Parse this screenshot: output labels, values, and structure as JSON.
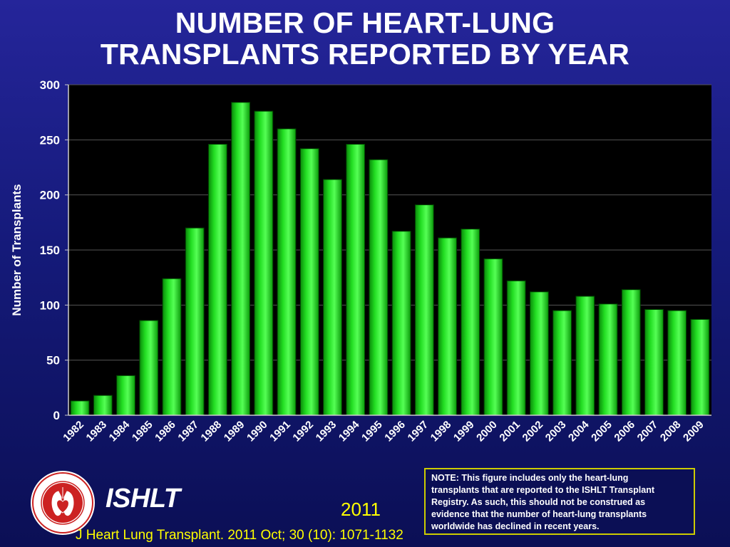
{
  "title": {
    "line1": "NUMBER OF HEART-LUNG",
    "line2": "TRANSPLANTS REPORTED BY YEAR"
  },
  "chart_data": {
    "type": "bar",
    "title": "NUMBER OF HEART-LUNG TRANSPLANTS REPORTED BY YEAR",
    "xlabel": "",
    "ylabel": "Number of Transplants",
    "ylim": [
      0,
      300
    ],
    "yticks": [
      0,
      50,
      100,
      150,
      200,
      250,
      300
    ],
    "grid": true,
    "bar_color": "#22dd22",
    "categories": [
      "1982",
      "1983",
      "1984",
      "1985",
      "1986",
      "1987",
      "1988",
      "1989",
      "1990",
      "1991",
      "1992",
      "1993",
      "1994",
      "1995",
      "1996",
      "1997",
      "1998",
      "1999",
      "2000",
      "2001",
      "2002",
      "2003",
      "2004",
      "2005",
      "2006",
      "2007",
      "2008",
      "2009"
    ],
    "values": [
      13,
      18,
      36,
      86,
      124,
      170,
      246,
      284,
      276,
      260,
      242,
      214,
      246,
      232,
      167,
      191,
      161,
      169,
      142,
      122,
      112,
      95,
      108,
      101,
      114,
      96,
      95,
      87
    ]
  },
  "footer": {
    "org": "ISHLT",
    "year": "2011",
    "citation": "J Heart Lung Transplant. 2011 Oct; 30 (10): 1071-1132",
    "note_lines": [
      "NOTE: This figure includes only the heart-lung",
      "transplants that are reported to the ISHLT Transplant",
      "Registry.  As such, this should not be construed as",
      "evidence that the number of heart-lung transplants",
      "worldwide has declined in recent years."
    ],
    "logo_text": "INTERNATIONAL SOCIETY FOR HEART & LUNG TRANSPLANTATION"
  },
  "colors": {
    "background": "#151a7a",
    "plot_background": "#000000",
    "bar": "#22dd22",
    "accent_yellow": "#ffff00",
    "logo_red": "#cc2222"
  }
}
